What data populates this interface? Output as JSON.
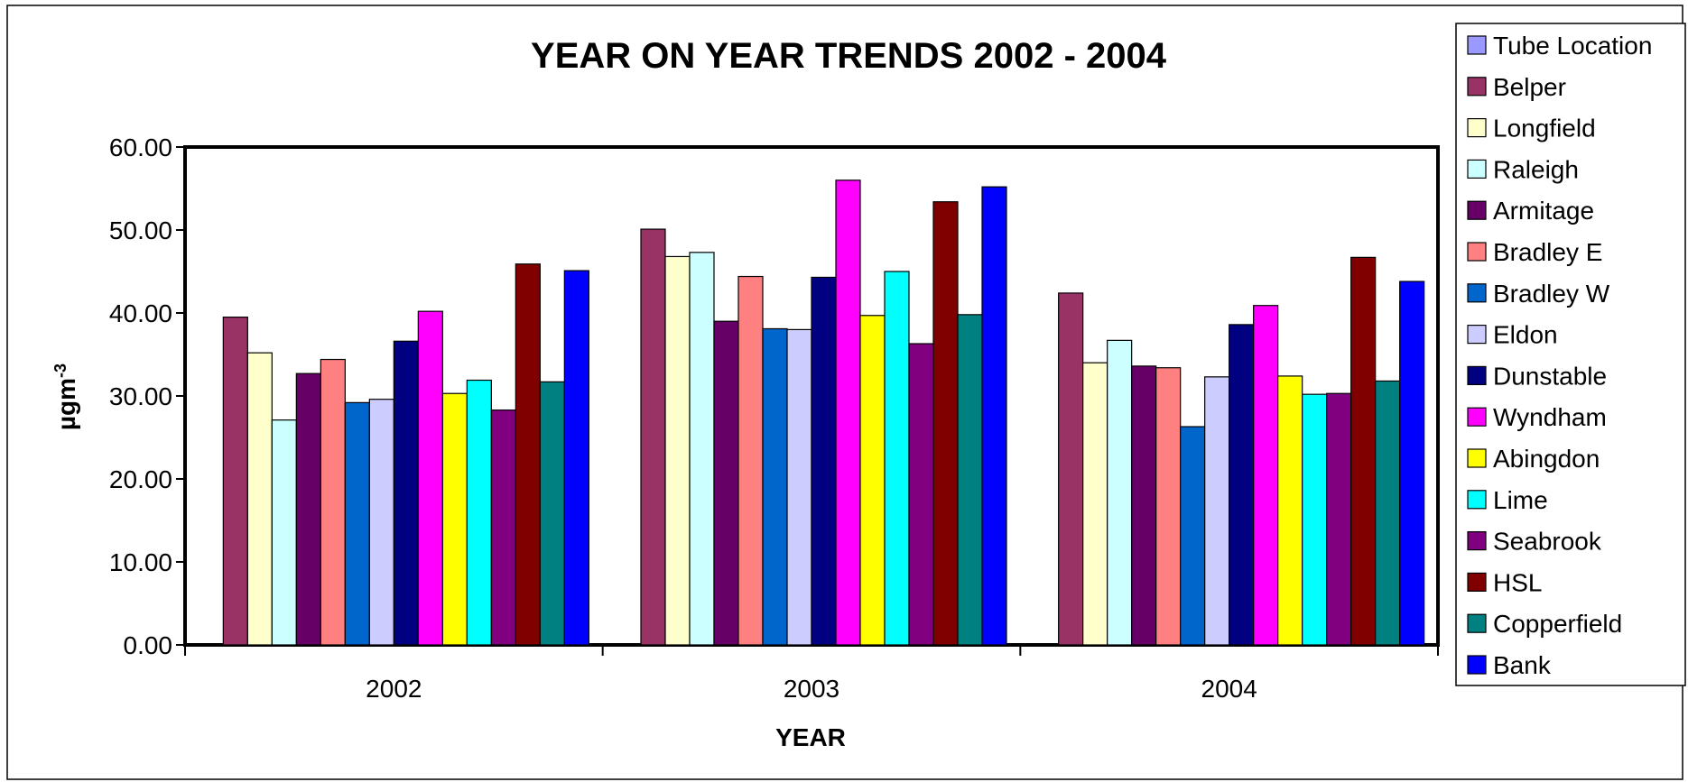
{
  "chart_data": {
    "type": "bar",
    "title": "YEAR ON YEAR TRENDS 2002 - 2004",
    "xlabel": "YEAR",
    "ylabel": "µgm",
    "ylabel_superscript": "-3",
    "categories": [
      "2002",
      "2003",
      "2004"
    ],
    "ylim": [
      0,
      60
    ],
    "yticks": [
      "0.00",
      "10.00",
      "20.00",
      "30.00",
      "40.00",
      "50.00",
      "60.00"
    ],
    "grid": false,
    "legend_position": "right",
    "series": [
      {
        "name": "Tube Location",
        "color": "#9999FF",
        "values": [
          0,
          0,
          0
        ]
      },
      {
        "name": "Belper",
        "color": "#993366",
        "values": [
          39.5,
          50.1,
          42.4
        ]
      },
      {
        "name": "Longfield",
        "color": "#FFFFCC",
        "values": [
          35.2,
          46.8,
          34.0
        ]
      },
      {
        "name": "Raleigh",
        "color": "#CCFFFF",
        "values": [
          27.1,
          47.3,
          36.7
        ]
      },
      {
        "name": "Armitage",
        "color": "#660066",
        "values": [
          32.7,
          39.0,
          33.6
        ]
      },
      {
        "name": "Bradley E",
        "color": "#FF8080",
        "values": [
          34.4,
          44.4,
          33.4
        ]
      },
      {
        "name": "Bradley W",
        "color": "#0066CC",
        "values": [
          29.2,
          38.1,
          26.3
        ]
      },
      {
        "name": "Eldon",
        "color": "#CCCCFF",
        "values": [
          29.6,
          38.0,
          32.3
        ]
      },
      {
        "name": "Dunstable",
        "color": "#000080",
        "values": [
          36.6,
          44.3,
          38.6
        ]
      },
      {
        "name": "Wyndham",
        "color": "#FF00FF",
        "values": [
          40.2,
          56.0,
          40.9
        ]
      },
      {
        "name": "Abingdon",
        "color": "#FFFF00",
        "values": [
          30.3,
          39.7,
          32.4
        ]
      },
      {
        "name": "Lime",
        "color": "#00FFFF",
        "values": [
          31.9,
          45.0,
          30.2
        ]
      },
      {
        "name": "Seabrook",
        "color": "#800080",
        "values": [
          28.3,
          36.3,
          30.3
        ]
      },
      {
        "name": "HSL",
        "color": "#800000",
        "values": [
          45.9,
          53.4,
          46.7
        ]
      },
      {
        "name": "Copperfield",
        "color": "#008080",
        "values": [
          31.7,
          39.8,
          31.8
        ]
      },
      {
        "name": "Bank",
        "color": "#0000FF",
        "values": [
          45.1,
          55.2,
          43.8
        ]
      }
    ]
  }
}
